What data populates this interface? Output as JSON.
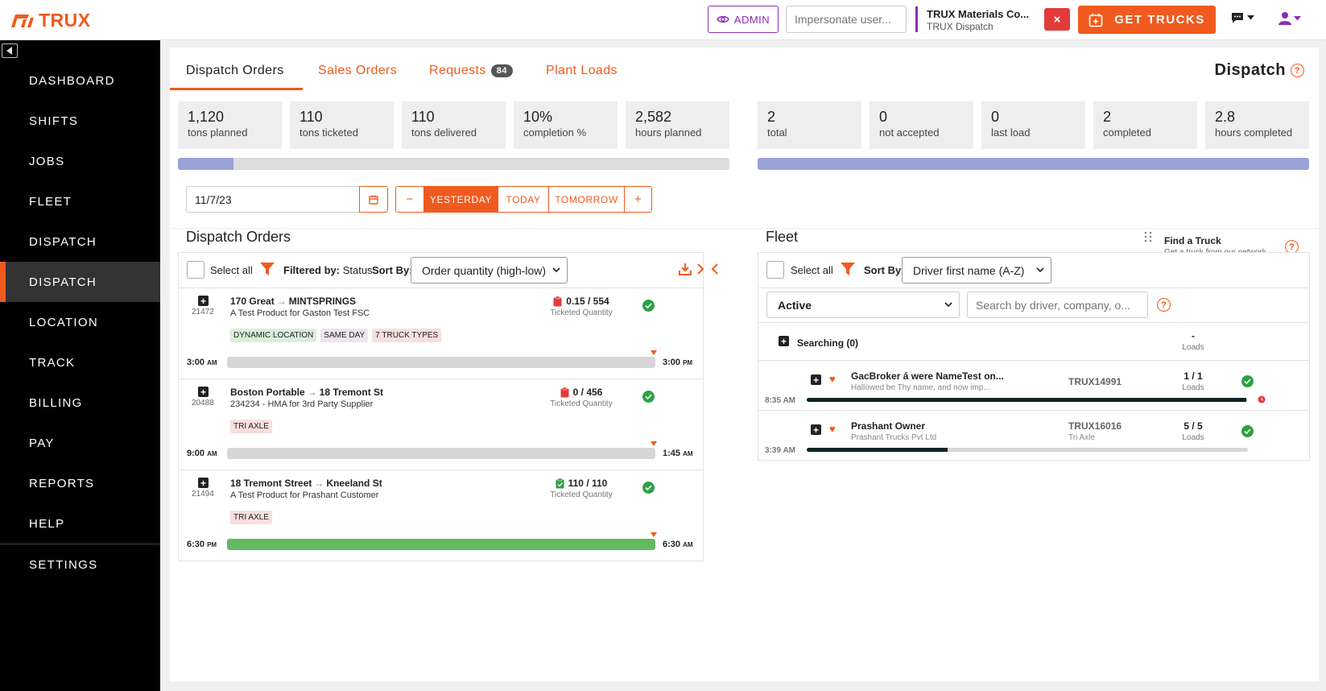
{
  "brand": {
    "name": "TRUX",
    "color": "#f05a1e"
  },
  "header": {
    "admin_label": "ADMIN",
    "impersonate_placeholder": "Impersonate user...",
    "company_name": "TRUX Materials Co...",
    "company_sub": "TRUX Dispatch",
    "close_label": "×",
    "get_trucks_label": "GET TRUCKS"
  },
  "sidebar": {
    "items": [
      {
        "label": "DASHBOARD"
      },
      {
        "label": "SHIFTS"
      },
      {
        "label": "JOBS"
      },
      {
        "label": "FLEET"
      },
      {
        "label": "DISPATCH"
      },
      {
        "label": "DISPATCH",
        "active": true
      },
      {
        "label": "LOCATION"
      },
      {
        "label": "TRACK"
      },
      {
        "label": "BILLING"
      },
      {
        "label": "PAY"
      },
      {
        "label": "REPORTS"
      },
      {
        "label": "HELP"
      },
      {
        "label": "SETTINGS"
      }
    ]
  },
  "tabs": [
    {
      "label": "Dispatch Orders",
      "active": true
    },
    {
      "label": "Sales Orders"
    },
    {
      "label": "Requests",
      "badge": "84"
    },
    {
      "label": "Plant Loads"
    }
  ],
  "page_title": "Dispatch",
  "order_stats": [
    {
      "value": "1,120",
      "label": "tons planned"
    },
    {
      "value": "110",
      "label": "tons ticketed"
    },
    {
      "value": "110",
      "label": "tons delivered"
    },
    {
      "value": "10%",
      "label": "completion %"
    },
    {
      "value": "2,582",
      "label": "hours planned"
    }
  ],
  "order_progress": 0.1,
  "fleet_stats": [
    {
      "value": "2",
      "label": "total"
    },
    {
      "value": "0",
      "label": "not accepted"
    },
    {
      "value": "0",
      "label": "last load"
    },
    {
      "value": "2",
      "label": "completed"
    },
    {
      "value": "2.8",
      "label": "hours completed"
    }
  ],
  "fleet_progress": 1.0,
  "date": {
    "value": "11/7/23",
    "minus": "−",
    "yesterday": "YESTERDAY",
    "today": "TODAY",
    "tomorrow": "TOMORROW",
    "plus": "+"
  },
  "dispatch_orders": {
    "title": "Dispatch Orders",
    "select_all": "Select all",
    "filtered_by_label": "Filtered by:",
    "filtered_by_value": "Status",
    "sort_by_label": "Sort By:",
    "sort_value": "Order quantity (high-low)",
    "items": [
      {
        "id": "21472",
        "from": "170 Great",
        "to": "MINTSPRINGS",
        "desc": "A Test Product for Gaston Test FSC",
        "tags": [
          "DYNAMIC LOCATION",
          "SAME DAY",
          "7 TRUCK TYPES"
        ],
        "qty": "0.15 / 554",
        "qty_label": "Ticketed Quantity",
        "start": "3:00",
        "start_ampm": "AM",
        "end": "3:00",
        "end_ampm": "PM",
        "progress": 0,
        "status_color": "#e33b3b"
      },
      {
        "id": "20488",
        "from": "Boston Portable",
        "to": "18 Tremont St",
        "desc": "234234 - HMA for 3rd Party Supplier",
        "tags": [
          "TRI AXLE"
        ],
        "qty": "0 / 456",
        "qty_label": "Ticketed Quantity",
        "start": "9:00",
        "start_ampm": "AM",
        "end": "1:45",
        "end_ampm": "AM",
        "progress": 0,
        "status_color": "#e33b3b"
      },
      {
        "id": "21494",
        "from": "18 Tremont Street",
        "to": "Kneeland St",
        "desc": "A Test Product for Prashant Customer",
        "tags": [
          "TRI AXLE"
        ],
        "qty": "110 / 110",
        "qty_label": "Ticketed Quantity",
        "start": "6:30",
        "start_ampm": "PM",
        "end": "6:30",
        "end_ampm": "AM",
        "progress": 1,
        "status_color": "#2ea043"
      }
    ]
  },
  "fleet": {
    "title": "Fleet",
    "find_truck_title": "Find a Truck",
    "find_truck_sub": "Get a truck from our network.",
    "select_all": "Select all",
    "sort_by_label": "Sort By:",
    "sort_value": "Driver first name (A-Z)",
    "status_value": "Active",
    "search_placeholder": "Search by driver, company, o...",
    "searching_label": "Searching (0)",
    "searching_loads": "-",
    "loads_label": "Loads",
    "drivers": [
      {
        "name": "GacBroker á were NameTest on...",
        "sub": "Hallowed be Thy name, and now imp...",
        "truck": "TRUX14991",
        "truck_type": "",
        "loads": "1 / 1",
        "time": "8:35",
        "ampm": "AM",
        "progress": 0.997
      },
      {
        "name": "Prashant Owner",
        "sub": "Prashant Trucks Pvt Ltd",
        "truck": "TRUX16016",
        "truck_type": "Tri Axle",
        "loads": "5 / 5",
        "time": "3:39",
        "ampm": "AM",
        "progress": 0.32
      }
    ]
  }
}
